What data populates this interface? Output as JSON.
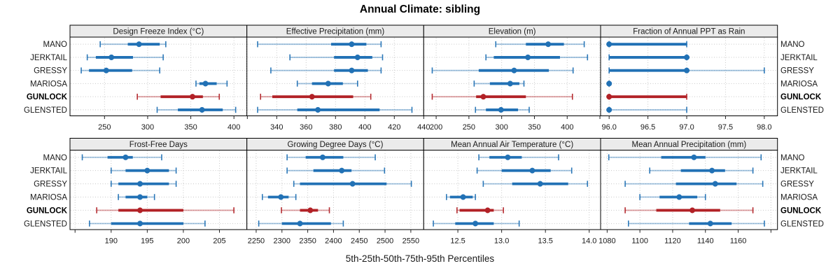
{
  "title": "Annual Climate: sibling",
  "caption": "5th-25th-50th-75th-95th Percentiles",
  "stations": [
    "MANO",
    "JERKTAIL",
    "GRESSY",
    "MARIOSA",
    "GUNLOCK",
    "GLENSTED"
  ],
  "highlighted_station": "GUNLOCK",
  "percentile_labels": [
    "5th",
    "25th",
    "50th",
    "75th",
    "95th"
  ],
  "colors": {
    "series_normal": "#2171b5",
    "series_highlight": "#b22126",
    "strip_bg": "#ebebeb",
    "panel_border": "#000000",
    "grid": "#c8c8c8",
    "text": "#1a1a1a"
  },
  "chart_data": {
    "type": "dotplot-trellis",
    "layout": "2 rows x 4 cols",
    "grid": "dotted",
    "panels": [
      {
        "title": "Design Freeze Index (°C)",
        "axis": [
          210,
          415
        ],
        "ticks": [
          {
            "v": 250,
            "label": "250"
          },
          {
            "v": 300,
            "label": "300"
          },
          {
            "v": 350,
            "label": "350"
          },
          {
            "v": 400,
            "label": "400"
          }
        ],
        "series": {
          "MANO": [
            245,
            277,
            290,
            314,
            321
          ],
          "JERKTAIL": [
            230,
            240,
            258,
            283,
            318
          ],
          "GRESSY": [
            223,
            232,
            252,
            282,
            314
          ],
          "MARIOSA": [
            356,
            360,
            367,
            380,
            392
          ],
          "GUNLOCK": [
            288,
            315,
            352,
            364,
            383
          ],
          "GLENSTED": [
            311,
            335,
            363,
            387,
            402
          ]
        }
      },
      {
        "title": "Effective Precipitation (mm)",
        "axis": [
          319.7,
          440
        ],
        "ticks": [
          {
            "v": 320,
            "label": ""
          },
          {
            "v": 340,
            "label": "340"
          },
          {
            "v": 360,
            "label": "360"
          },
          {
            "v": 380,
            "label": "380"
          },
          {
            "v": 400,
            "label": "400"
          },
          {
            "v": 420,
            "label": "420"
          },
          {
            "v": 440,
            "label": "440"
          }
        ],
        "series": {
          "MANO": [
            327,
            377,
            391,
            401,
            411
          ],
          "JERKTAIL": [
            349,
            379,
            395,
            405,
            412
          ],
          "GRESSY": [
            336,
            379,
            391,
            402,
            411
          ],
          "MARIOSA": [
            354,
            364,
            375,
            385,
            395
          ],
          "GUNLOCK": [
            329,
            337,
            364,
            392,
            404
          ],
          "GLENSTED": [
            327,
            354,
            368,
            410,
            432
          ]
        }
      },
      {
        "title": "Elevation (m)",
        "axis": [
          181,
          451
        ],
        "ticks": [
          {
            "v": 200,
            "label": "200"
          },
          {
            "v": 250,
            "label": "250"
          },
          {
            "v": 300,
            "label": "300"
          },
          {
            "v": 350,
            "label": "350"
          },
          {
            "v": 400,
            "label": "400"
          },
          {
            "v": 450,
            "label": ""
          }
        ],
        "series": {
          "MANO": [
            291,
            337,
            371,
            395,
            426
          ],
          "JERKTAIL": [
            276,
            288,
            340,
            389,
            431
          ],
          "GRESSY": [
            194,
            265,
            319,
            372,
            409
          ],
          "MARIOSA": [
            258,
            282,
            313,
            327,
            334
          ],
          "GUNLOCK": [
            194,
            261,
            272,
            337,
            408
          ],
          "GLENSTED": [
            260,
            276,
            299,
            325,
            342
          ]
        }
      },
      {
        "title": "Fraction of Annual PPT as Rain",
        "axis": [
          95.89,
          98.17
        ],
        "ticks": [
          {
            "v": 96.0,
            "label": "96.0"
          },
          {
            "v": 96.5,
            "label": "96.5"
          },
          {
            "v": 97.0,
            "label": "97.0"
          },
          {
            "v": 97.5,
            "label": "97.5"
          },
          {
            "v": 98.0,
            "label": "98.0"
          }
        ],
        "series": {
          "MANO": [
            96,
            96,
            96,
            97,
            97
          ],
          "JERKTAIL": [
            96,
            96,
            97,
            97,
            97
          ],
          "GRESSY": [
            96,
            96,
            97,
            97,
            98
          ],
          "MARIOSA": [
            96,
            96,
            96,
            96,
            96
          ],
          "GUNLOCK": [
            96,
            96,
            96,
            97,
            97
          ],
          "GLENSTED": [
            96,
            96,
            96,
            96,
            97
          ]
        }
      },
      {
        "title": "Frost-Free Days",
        "axis": [
          184.3,
          208.8
        ],
        "ticks": [
          {
            "v": 185,
            "label": ""
          },
          {
            "v": 190,
            "label": "190"
          },
          {
            "v": 195,
            "label": "195"
          },
          {
            "v": 200,
            "label": "200"
          },
          {
            "v": 205,
            "label": "205"
          }
        ],
        "series": {
          "MANO": [
            186,
            189.5,
            192,
            193,
            197
          ],
          "JERKTAIL": [
            190,
            192,
            195,
            198,
            199
          ],
          "GRESSY": [
            190,
            191,
            194,
            198,
            199
          ],
          "MARIOSA": [
            191,
            192,
            194,
            195,
            196
          ],
          "GUNLOCK": [
            188,
            191,
            194,
            200,
            207
          ],
          "GLENSTED": [
            187,
            190,
            194,
            200,
            203
          ]
        }
      },
      {
        "title": "Growing Degree Days (°C)",
        "axis": [
          2232,
          2575
        ],
        "ticks": [
          {
            "v": 2250,
            "label": "2250"
          },
          {
            "v": 2300,
            "label": "2300"
          },
          {
            "v": 2350,
            "label": "2350"
          },
          {
            "v": 2400,
            "label": "2400"
          },
          {
            "v": 2450,
            "label": "2450"
          },
          {
            "v": 2500,
            "label": "2500"
          },
          {
            "v": 2550,
            "label": "2550"
          }
        ],
        "series": {
          "MANO": [
            2310,
            2346,
            2379,
            2419,
            2481
          ],
          "JERKTAIL": [
            2310,
            2361,
            2416,
            2435,
            2499
          ],
          "GRESSY": [
            2323,
            2335,
            2437,
            2503,
            2551
          ],
          "MARIOSA": [
            2262,
            2273,
            2298,
            2313,
            2327
          ],
          "GUNLOCK": [
            2299,
            2335,
            2355,
            2370,
            2392
          ],
          "GLENSTED": [
            2255,
            2300,
            2335,
            2395,
            2419
          ]
        }
      },
      {
        "title": "Mean Annual Air Temperature (°C)",
        "axis": [
          12.11,
          14.13
        ],
        "ticks": [
          {
            "v": 12.5,
            "label": "12.5"
          },
          {
            "v": 13.0,
            "label": "13.0"
          },
          {
            "v": 13.5,
            "label": "13.5"
          },
          {
            "v": 14.0,
            "label": "14.0"
          }
        ],
        "series": {
          "MANO": [
            12.74,
            12.86,
            13.07,
            13.23,
            13.65
          ],
          "JERKTAIL": [
            12.72,
            13.0,
            13.35,
            13.56,
            13.8
          ],
          "GRESSY": [
            12.79,
            13.12,
            13.44,
            13.76,
            13.98
          ],
          "MARIOSA": [
            12.37,
            12.41,
            12.56,
            12.67,
            12.7
          ],
          "GUNLOCK": [
            12.49,
            12.52,
            12.84,
            12.91,
            13.02
          ],
          "GLENSTED": [
            12.22,
            12.47,
            12.7,
            12.91,
            13.2
          ]
        }
      },
      {
        "title": "Mean Annual Precipitation (mm)",
        "axis": [
          1076,
          1184
        ],
        "ticks": [
          {
            "v": 1080,
            "label": "1080"
          },
          {
            "v": 1100,
            "label": "1100"
          },
          {
            "v": 1120,
            "label": "1120"
          },
          {
            "v": 1140,
            "label": "1140"
          },
          {
            "v": 1160,
            "label": "1160"
          },
          {
            "v": 1180,
            "label": ""
          }
        ],
        "series": {
          "MANO": [
            1081,
            1113,
            1133,
            1140,
            1174
          ],
          "JERKTAIL": [
            1106,
            1125,
            1144,
            1152,
            1169
          ],
          "GRESSY": [
            1091,
            1122,
            1146,
            1159,
            1175
          ],
          "MARIOSA": [
            1100,
            1112,
            1124,
            1135,
            1140
          ],
          "GUNLOCK": [
            1091,
            1110,
            1132,
            1149,
            1169
          ],
          "GLENSTED": [
            1093,
            1130,
            1143,
            1156,
            1176
          ]
        }
      }
    ]
  }
}
